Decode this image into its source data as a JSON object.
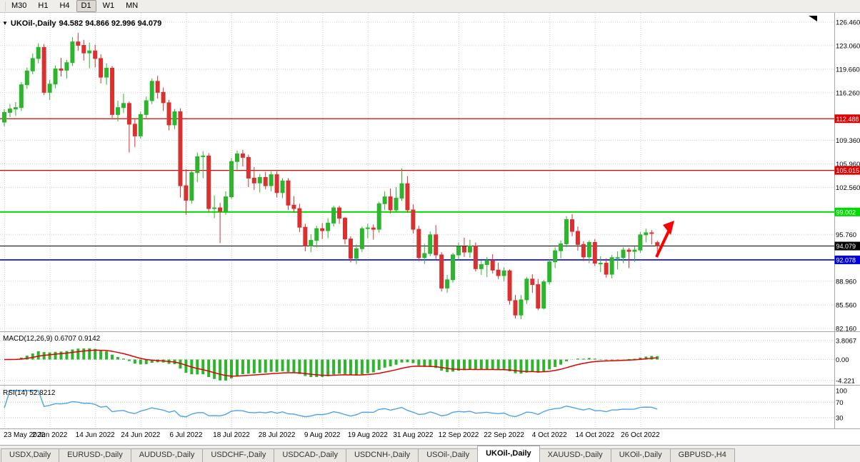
{
  "toolbar": {
    "buttons": [
      "M30",
      "H1",
      "H4",
      "D1",
      "W1",
      "MN"
    ],
    "active": "D1"
  },
  "chart_header": {
    "symbol": "UKOil-,Daily",
    "values": "94.582 94.866 92.996 94.079"
  },
  "indicators": {
    "macd_name": "MACD(12,26,9)",
    "macd_values": "0.6707 0.9142",
    "rsi_name": "RSI(14)",
    "rsi_value": "52.8212"
  },
  "tabs": {
    "items": [
      "USDX,Daily",
      "EURUSD-,Daily",
      "AUDUSD-,Daily",
      "USDCHF-,Daily",
      "USDCAD-,Daily",
      "USDCNH-,Daily",
      "USOil-,Daily",
      "UKOil-,Daily",
      "XAUUSD-,Daily",
      "UKOil-,Daily",
      "GBPUSD-,H4"
    ],
    "active_index": 7
  },
  "chart_data": [
    {
      "type": "candlestick",
      "title": "UKOil-,Daily",
      "timeframe": "Daily",
      "ohlc_current": {
        "open": 94.582,
        "high": 94.866,
        "low": 92.996,
        "close": 94.079
      },
      "ylim": [
        82.16,
        126.46
      ],
      "up_color": "#2DB52D",
      "down_color": "#D93030",
      "y_ticks": [
        "126.460",
        "123.060",
        "119.660",
        "116.260",
        "109.360",
        "105.960",
        "102.560",
        "95.760",
        "88.960",
        "85.560",
        "82.160"
      ],
      "x_labels": [
        [
          0,
          "23 May 2022"
        ],
        [
          8,
          "2 Jun 2022"
        ],
        [
          16,
          "14 Jun 2022"
        ],
        [
          24,
          "24 Jun 2022"
        ],
        [
          32,
          "6 Jul 2022"
        ],
        [
          40,
          "18 Jul 2022"
        ],
        [
          48,
          "28 Jul 2022"
        ],
        [
          56,
          "9 Aug 2022"
        ],
        [
          64,
          "19 Aug 2022"
        ],
        [
          72,
          "31 Aug 2022"
        ],
        [
          80,
          "12 Sep 2022"
        ],
        [
          88,
          "22 Sep 2022"
        ],
        [
          96,
          "4 Oct 2022"
        ],
        [
          104,
          "14 Oct 2022"
        ],
        [
          112,
          "26 Oct 2022"
        ]
      ],
      "hlines": [
        {
          "price": 112.488,
          "label": "112.488",
          "color": "#E00000",
          "width": 1.3
        },
        {
          "price": 105.015,
          "label": "105.015",
          "color": "#E00000",
          "width": 1.3
        },
        {
          "price": 99.002,
          "label": "99.002",
          "color": "#00DC00",
          "width": 2
        },
        {
          "price": 94.079,
          "label": "94.079",
          "color": "#000000",
          "width": 1
        },
        {
          "price": 92.078,
          "label": "92.078",
          "color": "#0000DC",
          "width": 1.6
        }
      ],
      "annotations": [
        {
          "type": "arrow",
          "direction": "up-right",
          "color": "#FF0000"
        }
      ],
      "candles": [
        [
          112.0,
          113.9,
          111.4,
          113.4
        ],
        [
          113.4,
          114.6,
          112.7,
          113.9
        ],
        [
          113.9,
          114.9,
          112.9,
          114.1
        ],
        [
          114.1,
          117.8,
          113.6,
          117.4
        ],
        [
          117.4,
          119.9,
          116.8,
          119.4
        ],
        [
          119.4,
          121.9,
          118.9,
          121.2
        ],
        [
          121.2,
          123.4,
          120.5,
          122.8
        ],
        [
          122.8,
          123.3,
          115.9,
          116.3
        ],
        [
          116.3,
          118.1,
          115.2,
          117.5
        ],
        [
          117.5,
          120.2,
          116.9,
          119.7
        ],
        [
          119.7,
          121.3,
          118.6,
          119.5
        ],
        [
          119.5,
          121.0,
          118.3,
          120.6
        ],
        [
          120.6,
          124.3,
          120.1,
          123.6
        ],
        [
          123.6,
          124.9,
          122.3,
          123.1
        ],
        [
          123.1,
          123.9,
          120.9,
          122.0
        ],
        [
          122.0,
          123.5,
          119.8,
          122.3
        ],
        [
          122.3,
          123.2,
          119.9,
          121.2
        ],
        [
          121.2,
          121.8,
          117.6,
          118.5
        ],
        [
          118.5,
          120.5,
          117.4,
          119.8
        ],
        [
          119.8,
          120.1,
          112.6,
          113.1
        ],
        [
          113.1,
          115.1,
          112.1,
          114.1
        ],
        [
          114.1,
          116.1,
          113.3,
          114.7
        ],
        [
          114.7,
          115.0,
          107.6,
          111.7
        ],
        [
          111.7,
          112.4,
          108.4,
          110.0
        ],
        [
          110.0,
          113.5,
          109.6,
          113.1
        ],
        [
          113.1,
          115.7,
          112.5,
          115.1
        ],
        [
          115.1,
          118.3,
          114.6,
          117.9
        ],
        [
          117.9,
          118.7,
          115.4,
          116.3
        ],
        [
          116.3,
          117.0,
          113.6,
          114.8
        ],
        [
          114.8,
          115.2,
          110.8,
          111.6
        ],
        [
          111.6,
          113.9,
          111.0,
          113.5
        ],
        [
          113.5,
          114.0,
          101.1,
          102.8
        ],
        [
          102.8,
          105.2,
          98.6,
          100.7
        ],
        [
          100.7,
          105.1,
          100.2,
          104.7
        ],
        [
          104.7,
          107.6,
          103.3,
          107.0
        ],
        [
          107.0,
          107.8,
          103.9,
          107.1
        ],
        [
          107.1,
          107.5,
          99.0,
          99.5
        ],
        [
          99.5,
          101.4,
          98.1,
          99.6
        ],
        [
          99.6,
          100.3,
          94.5,
          99.1
        ],
        [
          99.1,
          102.0,
          98.6,
          101.2
        ],
        [
          101.2,
          106.8,
          100.9,
          106.3
        ],
        [
          106.3,
          107.9,
          104.9,
          107.4
        ],
        [
          107.4,
          108.0,
          105.6,
          106.9
        ],
        [
          106.9,
          107.3,
          102.6,
          103.9
        ],
        [
          103.9,
          105.5,
          102.2,
          103.2
        ],
        [
          103.2,
          104.5,
          101.8,
          104.0
        ],
        [
          104.0,
          104.8,
          102.3,
          102.8
        ],
        [
          102.8,
          104.9,
          102.0,
          104.4
        ],
        [
          104.4,
          104.9,
          101.1,
          101.8
        ],
        [
          101.8,
          103.9,
          101.0,
          103.5
        ],
        [
          103.5,
          103.9,
          99.3,
          100.0
        ],
        [
          100.0,
          101.3,
          98.9,
          99.5
        ],
        [
          99.5,
          100.2,
          96.1,
          96.8
        ],
        [
          96.8,
          97.3,
          93.3,
          94.1
        ],
        [
          94.1,
          95.8,
          93.2,
          94.9
        ],
        [
          94.9,
          97.0,
          93.9,
          96.6
        ],
        [
          96.6,
          97.4,
          95.1,
          96.3
        ],
        [
          96.3,
          98.1,
          95.2,
          97.4
        ],
        [
          97.4,
          99.9,
          96.9,
          99.6
        ],
        [
          99.6,
          99.9,
          97.3,
          98.1
        ],
        [
          98.1,
          98.3,
          94.3,
          95.1
        ],
        [
          95.1,
          95.5,
          91.7,
          92.3
        ],
        [
          92.3,
          94.3,
          91.5,
          93.7
        ],
        [
          93.7,
          96.9,
          93.2,
          96.6
        ],
        [
          96.6,
          97.3,
          95.2,
          96.7
        ],
        [
          96.7,
          97.2,
          95.0,
          96.5
        ],
        [
          96.5,
          100.5,
          96.0,
          100.2
        ],
        [
          100.2,
          102.0,
          99.3,
          101.2
        ],
        [
          101.2,
          102.4,
          98.8,
          99.3
        ],
        [
          99.3,
          102.6,
          98.9,
          101.0
        ],
        [
          101.0,
          105.3,
          100.6,
          103.1
        ],
        [
          103.1,
          104.2,
          98.9,
          99.3
        ],
        [
          99.3,
          100.1,
          95.9,
          96.5
        ],
        [
          96.5,
          97.0,
          91.9,
          92.4
        ],
        [
          92.4,
          94.4,
          91.5,
          93.0
        ],
        [
          93.0,
          96.2,
          92.6,
          95.7
        ],
        [
          95.7,
          97.1,
          92.2,
          92.8
        ],
        [
          92.8,
          93.2,
          87.5,
          88.0
        ],
        [
          88.0,
          89.9,
          87.3,
          89.2
        ],
        [
          89.2,
          93.1,
          88.8,
          92.8
        ],
        [
          92.8,
          94.6,
          92.1,
          94.0
        ],
        [
          94.0,
          95.3,
          92.5,
          93.2
        ],
        [
          93.2,
          95.0,
          92.4,
          94.1
        ],
        [
          94.1,
          94.6,
          90.4,
          90.8
        ],
        [
          90.8,
          92.0,
          89.9,
          91.4
        ],
        [
          91.4,
          92.5,
          89.6,
          92.0
        ],
        [
          92.0,
          92.9,
          90.1,
          90.6
        ],
        [
          90.6,
          91.7,
          89.3,
          89.8
        ],
        [
          89.8,
          91.0,
          89.0,
          90.5
        ],
        [
          90.5,
          90.7,
          85.6,
          86.2
        ],
        [
          86.2,
          87.0,
          83.6,
          84.1
        ],
        [
          84.1,
          87.0,
          83.5,
          86.3
        ],
        [
          86.3,
          89.6,
          85.7,
          89.3
        ],
        [
          89.3,
          90.0,
          87.3,
          88.5
        ],
        [
          88.5,
          89.3,
          84.8,
          85.1
        ],
        [
          85.1,
          89.2,
          84.9,
          88.9
        ],
        [
          88.9,
          92.1,
          88.5,
          91.8
        ],
        [
          91.8,
          93.9,
          90.9,
          93.4
        ],
        [
          93.4,
          94.9,
          92.3,
          94.4
        ],
        [
          94.4,
          98.4,
          93.9,
          97.9
        ],
        [
          97.9,
          98.7,
          95.5,
          96.2
        ],
        [
          96.2,
          96.9,
          93.4,
          94.3
        ],
        [
          94.3,
          94.8,
          91.9,
          92.5
        ],
        [
          92.5,
          94.9,
          91.6,
          94.6
        ],
        [
          94.6,
          95.1,
          91.2,
          91.6
        ],
        [
          91.6,
          92.6,
          90.3,
          91.6
        ],
        [
          91.6,
          92.3,
          89.5,
          90.0
        ],
        [
          90.0,
          92.8,
          89.4,
          92.4
        ],
        [
          92.4,
          93.3,
          90.7,
          92.4
        ],
        [
          92.4,
          93.9,
          91.6,
          93.5
        ],
        [
          93.5,
          93.8,
          90.9,
          93.3
        ],
        [
          93.3,
          94.0,
          91.8,
          93.5
        ],
        [
          93.5,
          96.1,
          93.1,
          95.7
        ],
        [
          95.7,
          96.6,
          94.6,
          96.0
        ],
        [
          96.0,
          96.4,
          94.3,
          95.9
        ],
        [
          94.582,
          94.866,
          92.996,
          94.079
        ]
      ]
    },
    {
      "type": "bar",
      "name": "MACD(12,26,9)",
      "params": [
        12,
        26,
        9
      ],
      "value_main": 0.6707,
      "value_signal": 0.9142,
      "axis_labels": [
        [
          "3.8067",
          3.8067
        ],
        [
          "0.00",
          0
        ],
        [
          "-4.221",
          -4.221
        ]
      ],
      "hist_color": "#2DB52D",
      "signal_color": "#E00000"
    },
    {
      "type": "line",
      "name": "RSI(14)",
      "period": 14,
      "value": 52.8212,
      "levels": [
        70,
        30
      ],
      "axis_labels": [
        [
          "100",
          100
        ],
        [
          "70",
          70
        ],
        [
          "30",
          30
        ]
      ],
      "color": "#4FA3E8"
    }
  ]
}
